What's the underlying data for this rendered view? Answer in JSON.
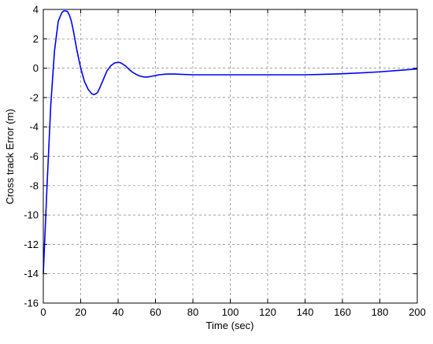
{
  "chart_data": {
    "type": "line",
    "title": "",
    "xlabel": "Time (sec)",
    "ylabel": "Cross track Error (m)",
    "xlim": [
      0,
      200
    ],
    "ylim": [
      -16,
      4
    ],
    "xticks": [
      0,
      20,
      40,
      60,
      80,
      100,
      120,
      140,
      160,
      180,
      200
    ],
    "yticks": [
      -16,
      -14,
      -12,
      -10,
      -8,
      -6,
      -4,
      -2,
      0,
      2,
      4
    ],
    "grid": true,
    "legend": "none",
    "series": [
      {
        "color": "#0000ff",
        "x": [
          0,
          2,
          4,
          6,
          8,
          10,
          11,
          12,
          13,
          14,
          15,
          16,
          17,
          18,
          20,
          22,
          24,
          26,
          27,
          28,
          29,
          30,
          32,
          34,
          36,
          38,
          40,
          41,
          42,
          44,
          46,
          48,
          50,
          52,
          54,
          56,
          58,
          60,
          62,
          66,
          70,
          80,
          90,
          100,
          120,
          130,
          140,
          150,
          160,
          170,
          180,
          190,
          200
        ],
        "y": [
          -14.0,
          -8.0,
          -2.5,
          1.2,
          3.2,
          3.8,
          3.9,
          3.9,
          3.85,
          3.6,
          3.2,
          2.6,
          1.9,
          1.2,
          0.0,
          -0.9,
          -1.45,
          -1.75,
          -1.8,
          -1.75,
          -1.65,
          -1.4,
          -0.8,
          -0.2,
          0.15,
          0.35,
          0.4,
          0.38,
          0.32,
          0.15,
          -0.1,
          -0.3,
          -0.45,
          -0.55,
          -0.6,
          -0.6,
          -0.55,
          -0.5,
          -0.45,
          -0.4,
          -0.4,
          -0.45,
          -0.45,
          -0.45,
          -0.45,
          -0.45,
          -0.45,
          -0.42,
          -0.38,
          -0.32,
          -0.25,
          -0.15,
          -0.05
        ]
      }
    ]
  }
}
